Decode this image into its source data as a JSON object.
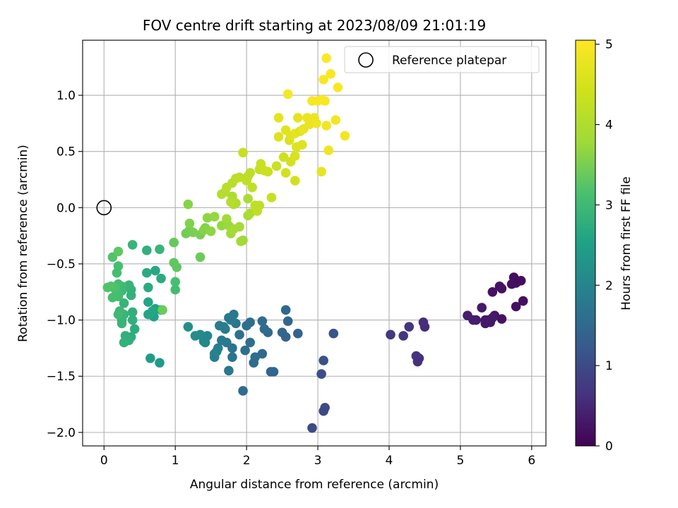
{
  "chart_data": {
    "type": "scatter",
    "title": "FOV centre drift starting at 2023/08/09 21:01:19",
    "xlabel": "Angular distance from reference (arcmin)",
    "ylabel": "Rotation from reference (arcmin)",
    "xlim": [
      -0.3,
      6.2
    ],
    "ylim": [
      -2.12,
      1.49
    ],
    "x_ticks": [
      0,
      1,
      2,
      3,
      4,
      5,
      6
    ],
    "y_ticks": [
      -2.0,
      -1.5,
      -1.0,
      -0.5,
      0.0,
      0.5,
      1.0
    ],
    "x_tick_labels": [
      "0",
      "1",
      "2",
      "3",
      "4",
      "5",
      "6"
    ],
    "y_tick_labels": [
      "−2.0",
      "−1.5",
      "−1.0",
      "−0.5",
      "0.0",
      "0.5",
      "1.0"
    ],
    "grid": true,
    "colormap": "viridis",
    "colorbar": {
      "label": "Hours from first FF file",
      "range": [
        0,
        5.05
      ],
      "ticks": [
        0,
        1,
        2,
        3,
        4,
        5
      ],
      "tick_labels": [
        "0",
        "1",
        "2",
        "3",
        "4",
        "5"
      ]
    },
    "legend": {
      "position": "top-right",
      "entries": [
        "Reference platepar"
      ]
    },
    "reference_point": {
      "x": 0.0,
      "y": 0.0
    },
    "series": [
      {
        "points": [
          [
            5.75,
            -0.62,
            0.15
          ],
          [
            5.78,
            -0.67,
            0.15
          ],
          [
            5.85,
            -0.65,
            0.15
          ],
          [
            5.72,
            -0.68,
            0.18
          ],
          [
            5.88,
            -0.83,
            0.18
          ],
          [
            5.78,
            -0.88,
            0.2
          ],
          [
            5.55,
            -0.7,
            0.2
          ],
          [
            5.58,
            -0.72,
            0.2
          ],
          [
            5.45,
            -0.75,
            0.22
          ],
          [
            5.58,
            -0.99,
            0.22
          ],
          [
            5.48,
            -0.96,
            0.25
          ],
          [
            5.4,
            -1.0,
            0.25
          ],
          [
            5.35,
            -1.0,
            0.28
          ],
          [
            5.35,
            -1.03,
            0.28
          ],
          [
            5.42,
            -1.02,
            0.3
          ],
          [
            5.45,
            -0.98,
            0.3
          ],
          [
            5.3,
            -0.89,
            0.32
          ],
          [
            5.22,
            -1.0,
            0.34
          ],
          [
            5.18,
            -1.0,
            0.36
          ],
          [
            5.1,
            -0.96,
            0.38
          ],
          [
            4.5,
            -1.06,
            0.55
          ],
          [
            4.48,
            -1.02,
            0.58
          ],
          [
            4.42,
            -1.34,
            0.6
          ],
          [
            4.4,
            -1.37,
            0.62
          ],
          [
            4.38,
            -1.32,
            0.65
          ],
          [
            4.28,
            -1.06,
            0.67
          ],
          [
            4.2,
            -1.14,
            0.7
          ],
          [
            4.02,
            -1.13,
            0.72
          ],
          [
            3.22,
            -1.12,
            1.15
          ],
          [
            3.08,
            -1.36,
            1.1
          ],
          [
            3.05,
            -1.48,
            1.05
          ],
          [
            3.1,
            -1.78,
            1.0
          ],
          [
            3.08,
            -1.81,
            0.98
          ],
          [
            2.92,
            -1.96,
            1.0
          ],
          [
            2.72,
            -1.12,
            1.4
          ],
          [
            2.58,
            -1.01,
            1.45
          ],
          [
            2.55,
            -0.91,
            1.5
          ],
          [
            2.55,
            -1.15,
            1.4
          ],
          [
            2.5,
            -1.11,
            1.45
          ],
          [
            2.38,
            -1.46,
            1.4
          ],
          [
            2.34,
            -1.46,
            1.45
          ],
          [
            2.3,
            -1.11,
            1.5
          ],
          [
            2.25,
            -1.08,
            1.55
          ],
          [
            2.22,
            -1.01,
            1.55
          ],
          [
            2.22,
            -1.3,
            1.5
          ],
          [
            2.12,
            -1.33,
            1.55
          ],
          [
            2.1,
            -1.38,
            1.55
          ],
          [
            2.05,
            -1.02,
            1.6
          ],
          [
            2.05,
            -1.2,
            1.6
          ],
          [
            2.0,
            -1.05,
            1.6
          ],
          [
            1.98,
            -1.27,
            1.6
          ],
          [
            1.95,
            -1.63,
            1.55
          ],
          [
            1.9,
            -1.13,
            1.65
          ],
          [
            1.85,
            -1.03,
            1.7
          ],
          [
            1.82,
            -0.95,
            1.75
          ],
          [
            1.8,
            -1.25,
            1.7
          ],
          [
            1.8,
            -1.33,
            1.7
          ],
          [
            1.78,
            -1.0,
            1.8
          ],
          [
            1.75,
            -0.98,
            1.8
          ],
          [
            1.75,
            -1.45,
            1.75
          ],
          [
            1.72,
            -1.2,
            1.75
          ],
          [
            1.7,
            -1.08,
            1.8
          ],
          [
            1.68,
            -1.06,
            1.85
          ],
          [
            1.65,
            -1.18,
            1.8
          ],
          [
            1.62,
            -1.05,
            1.85
          ],
          [
            1.6,
            -1.25,
            1.9
          ],
          [
            1.58,
            -1.28,
            1.9
          ],
          [
            1.55,
            -1.33,
            1.9
          ],
          [
            1.55,
            -1.3,
            1.95
          ],
          [
            1.45,
            -1.14,
            2.0
          ],
          [
            1.42,
            -1.2,
            2.0
          ],
          [
            1.4,
            -1.17,
            2.05
          ],
          [
            1.4,
            -1.19,
            2.05
          ],
          [
            1.35,
            -1.13,
            2.1
          ],
          [
            1.28,
            -1.14,
            2.15
          ],
          [
            1.18,
            -1.06,
            2.2
          ],
          [
            0.78,
            -1.38,
            2.4
          ],
          [
            0.65,
            -1.34,
            2.45
          ],
          [
            0.8,
            -0.91,
            2.5
          ],
          [
            0.72,
            -0.9,
            2.55
          ],
          [
            0.7,
            -0.97,
            2.55
          ],
          [
            0.68,
            -0.92,
            2.6
          ],
          [
            0.62,
            -0.84,
            2.6
          ],
          [
            0.62,
            -0.95,
            2.6
          ],
          [
            0.62,
            -0.71,
            2.7
          ],
          [
            0.6,
            -0.58,
            2.7
          ],
          [
            0.6,
            -0.38,
            2.8
          ],
          [
            0.72,
            -0.56,
            2.65
          ],
          [
            0.8,
            -0.63,
            2.7
          ],
          [
            0.78,
            -0.37,
            2.9
          ],
          [
            0.4,
            -0.33,
            2.9
          ],
          [
            0.4,
            -0.93,
            2.8
          ],
          [
            0.4,
            -1.0,
            2.8
          ],
          [
            0.43,
            -1.08,
            2.75
          ],
          [
            0.38,
            -1.15,
            2.75
          ],
          [
            0.38,
            -0.73,
            2.85
          ],
          [
            0.38,
            -0.78,
            2.85
          ],
          [
            0.35,
            -0.69,
            2.9
          ],
          [
            0.35,
            -1.18,
            2.8
          ],
          [
            0.3,
            -1.14,
            2.8
          ],
          [
            0.3,
            -1.19,
            2.8
          ],
          [
            0.28,
            -1.2,
            2.85
          ],
          [
            0.28,
            -0.95,
            2.9
          ],
          [
            0.28,
            -0.85,
            2.9
          ],
          [
            0.25,
            -1.0,
            2.9
          ],
          [
            0.25,
            -1.03,
            2.9
          ],
          [
            0.25,
            -0.74,
            3.0
          ],
          [
            0.25,
            -0.7,
            3.0
          ],
          [
            0.22,
            -0.92,
            3.0
          ],
          [
            0.2,
            -0.95,
            3.0
          ],
          [
            0.2,
            -0.79,
            3.05
          ],
          [
            0.2,
            -0.68,
            3.05
          ],
          [
            0.2,
            -0.52,
            3.1
          ],
          [
            0.18,
            -0.58,
            3.1
          ],
          [
            0.18,
            -0.76,
            3.1
          ],
          [
            0.15,
            -0.72,
            3.1
          ],
          [
            0.15,
            -0.71,
            3.15
          ],
          [
            0.12,
            -0.8,
            3.1
          ],
          [
            0.12,
            -0.44,
            3.2
          ],
          [
            0.1,
            -0.7,
            3.2
          ],
          [
            0.05,
            -0.71,
            3.2
          ],
          [
            0.2,
            -0.39,
            3.3
          ],
          [
            1.0,
            -0.73,
            3.05
          ],
          [
            1.0,
            -0.66,
            3.1
          ],
          [
            0.98,
            -0.49,
            3.3
          ],
          [
            1.02,
            -0.53,
            3.3
          ],
          [
            0.98,
            -0.31,
            3.35
          ],
          [
            0.82,
            -0.91,
            3.4
          ],
          [
            1.35,
            -0.44,
            3.4
          ],
          [
            1.15,
            -0.23,
            3.45
          ],
          [
            1.2,
            -0.2,
            3.45
          ],
          [
            1.25,
            -0.22,
            3.5
          ],
          [
            1.2,
            -0.14,
            3.55
          ],
          [
            1.18,
            0.03,
            3.6
          ],
          [
            1.35,
            -0.24,
            3.5
          ],
          [
            1.42,
            -0.18,
            3.55
          ],
          [
            1.4,
            -0.2,
            3.6
          ],
          [
            1.5,
            -0.21,
            3.65
          ],
          [
            1.45,
            -0.09,
            3.65
          ],
          [
            1.55,
            -0.08,
            3.7
          ],
          [
            1.65,
            -0.16,
            3.7
          ],
          [
            1.75,
            -0.16,
            3.75
          ],
          [
            1.72,
            -0.1,
            3.8
          ],
          [
            1.78,
            -0.23,
            3.8
          ],
          [
            1.82,
            -0.19,
            3.85
          ],
          [
            1.9,
            -0.17,
            3.85
          ],
          [
            1.92,
            -0.3,
            3.85
          ],
          [
            1.95,
            -0.29,
            3.8
          ],
          [
            2.02,
            -0.07,
            3.9
          ],
          [
            2.05,
            -0.05,
            3.95
          ],
          [
            2.02,
            0.08,
            3.95
          ],
          [
            1.8,
            0.1,
            3.95
          ],
          [
            1.82,
            0.03,
            4.0
          ],
          [
            1.85,
            0.04,
            4.0
          ],
          [
            1.78,
            0.05,
            4.05
          ],
          [
            1.7,
            0.14,
            4.05
          ],
          [
            1.65,
            0.12,
            4.05
          ],
          [
            1.72,
            0.18,
            4.1
          ],
          [
            1.8,
            0.22,
            4.1
          ],
          [
            1.85,
            0.26,
            4.15
          ],
          [
            1.9,
            0.27,
            4.15
          ],
          [
            2.02,
            0.28,
            4.1
          ],
          [
            2.05,
            0.31,
            4.15
          ],
          [
            2.08,
            0.18,
            4.2
          ],
          [
            2.0,
            0.24,
            4.2
          ],
          [
            2.12,
            0.02,
            4.2
          ],
          [
            2.18,
            0.02,
            4.2
          ],
          [
            2.15,
            -0.03,
            4.2
          ],
          [
            2.18,
            0.34,
            4.25
          ],
          [
            2.2,
            0.39,
            4.3
          ],
          [
            2.25,
            0.33,
            4.35
          ],
          [
            2.3,
            0.32,
            4.35
          ],
          [
            2.35,
            0.09,
            4.3
          ],
          [
            1.95,
            0.49,
            4.3
          ],
          [
            2.42,
            0.37,
            4.35
          ],
          [
            2.52,
            0.45,
            4.4
          ],
          [
            2.55,
            0.31,
            4.45
          ],
          [
            2.62,
            0.41,
            4.45
          ],
          [
            2.68,
            0.24,
            4.45
          ],
          [
            2.68,
            0.46,
            4.55
          ],
          [
            2.6,
            0.6,
            4.55
          ],
          [
            2.7,
            0.54,
            4.6
          ],
          [
            2.78,
            0.56,
            4.6
          ],
          [
            2.55,
            0.69,
            4.65
          ],
          [
            2.62,
            0.64,
            4.65
          ],
          [
            2.68,
            0.66,
            4.7
          ],
          [
            2.75,
            0.68,
            4.65
          ],
          [
            2.72,
            0.8,
            4.7
          ],
          [
            2.8,
            0.7,
            4.75
          ],
          [
            2.88,
            0.74,
            4.75
          ],
          [
            2.85,
            0.8,
            4.8
          ],
          [
            2.92,
            0.76,
            4.8
          ],
          [
            2.95,
            0.8,
            4.8
          ],
          [
            2.98,
            0.75,
            4.85
          ],
          [
            2.45,
            0.63,
            4.6
          ],
          [
            2.45,
            0.8,
            4.7
          ],
          [
            3.05,
            0.32,
            4.75
          ],
          [
            3.12,
            0.73,
            4.9
          ],
          [
            3.15,
            0.51,
            4.85
          ],
          [
            3.25,
            0.78,
            4.9
          ],
          [
            3.38,
            0.64,
            4.9
          ],
          [
            3.0,
            0.95,
            4.95
          ],
          [
            2.92,
            0.95,
            4.95
          ],
          [
            3.05,
            0.96,
            5.0
          ],
          [
            3.1,
            0.95,
            5.0
          ],
          [
            2.58,
            1.01,
            4.95
          ],
          [
            3.08,
            1.14,
            5.0
          ],
          [
            3.18,
            1.19,
            5.0
          ],
          [
            3.28,
            1.07,
            5.0
          ],
          [
            3.12,
            1.33,
            5.05
          ]
        ]
      }
    ]
  }
}
